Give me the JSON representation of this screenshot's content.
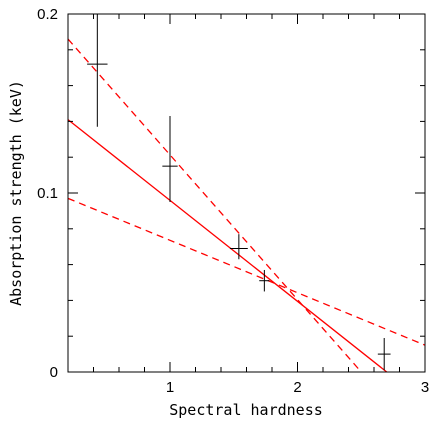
{
  "chart_data": {
    "type": "scatter",
    "xlabel": "Spectral hardness",
    "ylabel": "Absorption strength (keV)",
    "xlim": [
      0.2,
      3.0
    ],
    "ylim": [
      0,
      0.2
    ],
    "x_ticks": [
      {
        "value": 1,
        "label": "1"
      },
      {
        "value": 2,
        "label": "2"
      },
      {
        "value": 3,
        "label": "3"
      }
    ],
    "y_ticks": [
      {
        "value": 0,
        "label": "0"
      },
      {
        "value": 0.1,
        "label": "0.1"
      },
      {
        "value": 0.2,
        "label": "0.2"
      }
    ],
    "x_minor_step": 0.2,
    "y_minor_step": 0.02,
    "grid": false,
    "points": [
      {
        "x": 0.43,
        "y": 0.172,
        "xerr_low": 0.08,
        "xerr_high": 0.08,
        "yerr_low": 0.035,
        "yerr_high": 0.035
      },
      {
        "x": 1.0,
        "y": 0.115,
        "xerr_low": 0.06,
        "xerr_high": 0.06,
        "yerr_low": 0.02,
        "yerr_high": 0.028
      },
      {
        "x": 1.54,
        "y": 0.069,
        "xerr_low": 0.07,
        "xerr_high": 0.07,
        "yerr_low": 0.006,
        "yerr_high": 0.008
      },
      {
        "x": 1.74,
        "y": 0.051,
        "xerr_low": 0.04,
        "xerr_high": 0.04,
        "yerr_low": 0.006,
        "yerr_high": 0.006
      },
      {
        "x": 2.68,
        "y": 0.01,
        "xerr_low": 0.05,
        "xerr_high": 0.05,
        "yerr_low": 0.009,
        "yerr_high": 0.009
      }
    ],
    "fit_lines": [
      {
        "style": "solid",
        "x": [
          0.2,
          2.7
        ],
        "y": [
          0.141,
          0.0
        ]
      },
      {
        "style": "dashed",
        "x": [
          0.2,
          2.5
        ],
        "y": [
          0.186,
          0.0
        ]
      },
      {
        "style": "dashed",
        "x": [
          0.2,
          3.0
        ],
        "y": [
          0.097,
          0.015
        ]
      }
    ],
    "colors": {
      "points": "#000000",
      "fit": "#ff0000",
      "axes": "#000000"
    }
  }
}
